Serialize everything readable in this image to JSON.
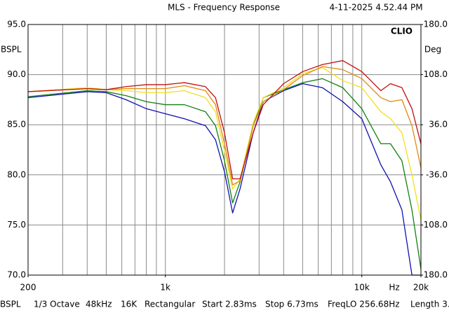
{
  "chart_data": {
    "type": "line",
    "title": "MLS - Frequency Response",
    "timestamp": "4-11-2025 4.52.44 PM",
    "brand": "CLIO",
    "y_label": "BSPL",
    "y2_label": "Deg",
    "x_unit": "Hz",
    "x_log": true,
    "grid": true,
    "xlim": [
      200,
      20000
    ],
    "xticks": [
      200,
      {
        "value": 1000,
        "label": "1k"
      },
      {
        "value": 10000,
        "label": "10k"
      },
      {
        "value": 20000,
        "label": "20k"
      }
    ],
    "xgrid": [
      300,
      400,
      500,
      600,
      700,
      800,
      900,
      1000,
      2000,
      3000,
      4000,
      5000,
      6000,
      7000,
      8000,
      9000,
      10000
    ],
    "ylim": [
      70,
      95
    ],
    "yticks": [
      {
        "value": 95,
        "label": "95.0"
      },
      {
        "value": 90,
        "label": "90.0"
      },
      {
        "value": 85,
        "label": "85.0"
      },
      {
        "value": 80,
        "label": "80.0"
      },
      {
        "value": 75,
        "label": "75.0"
      },
      {
        "value": 70,
        "label": "70.0"
      }
    ],
    "y2lim": [
      -180,
      180
    ],
    "y2ticks": [
      {
        "value": 180,
        "label": "180.0"
      },
      {
        "value": 108,
        "label": "108.0"
      },
      {
        "value": 36,
        "label": "36.0"
      },
      {
        "value": -36,
        "label": "-36.0"
      },
      {
        "value": -108,
        "label": "-108.0"
      },
      {
        "value": -180,
        "label": "-180.0"
      }
    ],
    "x": [
      200,
      400,
      500,
      630,
      800,
      1000,
      1250,
      1600,
      1800,
      2000,
      2200,
      2400,
      2800,
      3150,
      4000,
      5000,
      6300,
      8000,
      10000,
      12500,
      14000,
      16000,
      18000,
      20000
    ],
    "series": [
      {
        "color": "#1010b0",
        "values": [
          87.7,
          88.3,
          88.2,
          87.5,
          86.6,
          86.1,
          85.6,
          84.9,
          83.5,
          80.3,
          76.2,
          78.6,
          84.2,
          87.3,
          88.4,
          89.1,
          88.7,
          87.3,
          85.6,
          81.0,
          79.3,
          76.5,
          70.0,
          70.0
        ]
      },
      {
        "color": "#108010",
        "values": [
          87.8,
          88.4,
          88.3,
          87.9,
          87.3,
          87.0,
          87.0,
          86.3,
          84.9,
          81.4,
          77.2,
          79.3,
          84.9,
          87.7,
          88.5,
          89.2,
          89.6,
          88.7,
          86.6,
          83.1,
          83.1,
          81.4,
          76.5,
          70.6
        ]
      },
      {
        "color": "#f0e020",
        "values": [
          88.3,
          88.7,
          88.5,
          88.4,
          88.2,
          88.2,
          88.4,
          87.7,
          86.3,
          82.4,
          78.6,
          79.6,
          85.2,
          87.7,
          88.7,
          90.1,
          90.7,
          89.4,
          88.7,
          86.3,
          85.6,
          84.2,
          80.0,
          75.5
        ]
      },
      {
        "color": "#e08a10",
        "values": [
          88.3,
          88.6,
          88.5,
          88.6,
          88.6,
          88.6,
          88.9,
          88.4,
          87.0,
          83.1,
          79.0,
          79.4,
          84.9,
          87.3,
          88.5,
          89.9,
          90.8,
          90.5,
          89.6,
          87.7,
          87.3,
          87.5,
          84.9,
          80.7
        ]
      },
      {
        "color": "#c01010",
        "values": [
          88.3,
          88.6,
          88.5,
          88.8,
          89.0,
          89.0,
          89.2,
          88.8,
          87.7,
          84.2,
          79.6,
          79.6,
          84.2,
          87.0,
          89.1,
          90.3,
          91.0,
          91.4,
          90.3,
          88.4,
          89.1,
          88.7,
          86.6,
          83.1
        ]
      }
    ],
    "status": [
      "BSPL",
      "1/3 Octave",
      "48kHz",
      "16K",
      "Rectangular",
      "Start 2.83ms",
      "Stop 6.73ms",
      "FreqLO 256.68Hz",
      "Length 3."
    ]
  }
}
